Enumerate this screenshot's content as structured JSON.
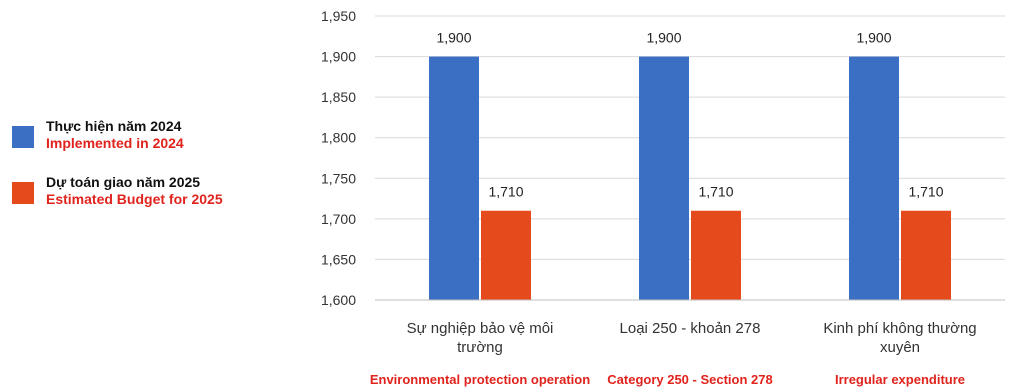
{
  "legend": {
    "items": [
      {
        "vn": "Thực hiện năm 2024",
        "en": "Implemented in 2024",
        "color": "#3a6fc4"
      },
      {
        "vn": "Dự toán giao năm 2025",
        "en": "Estimated Budget for 2025",
        "color": "#e44a1c"
      }
    ]
  },
  "chart_data": {
    "type": "bar",
    "categories": [
      {
        "vn_lines": [
          "Sự nghiệp bảo vệ môi",
          "trường"
        ],
        "en": "Environmental protection operation"
      },
      {
        "vn_lines": [
          "Loại 250 - khoản 278"
        ],
        "en": "Category 250 - Section 278"
      },
      {
        "vn_lines": [
          "Kinh phí không thường",
          "xuyên"
        ],
        "en": "Irregular expenditure"
      }
    ],
    "series": [
      {
        "name": "Thực hiện năm 2024",
        "values": [
          1900,
          1900,
          1900
        ],
        "labels": [
          "1,900",
          "1,900",
          "1,900"
        ],
        "color": "#3a6fc4"
      },
      {
        "name": "Dự toán giao năm 2025",
        "values": [
          1710,
          1710,
          1710
        ],
        "labels": [
          "1,710",
          "1,710",
          "1,710"
        ],
        "color": "#e44a1c"
      }
    ],
    "yticks": [
      1600,
      1650,
      1700,
      1750,
      1800,
      1850,
      1900,
      1950
    ],
    "ytick_labels": [
      "1,600",
      "1,650",
      "1,700",
      "1,750",
      "1,800",
      "1,850",
      "1,900",
      "1,950"
    ],
    "ylim": [
      1600,
      1950
    ],
    "grid": true,
    "legend_position": "left",
    "en_label_color": "#e0231d"
  }
}
